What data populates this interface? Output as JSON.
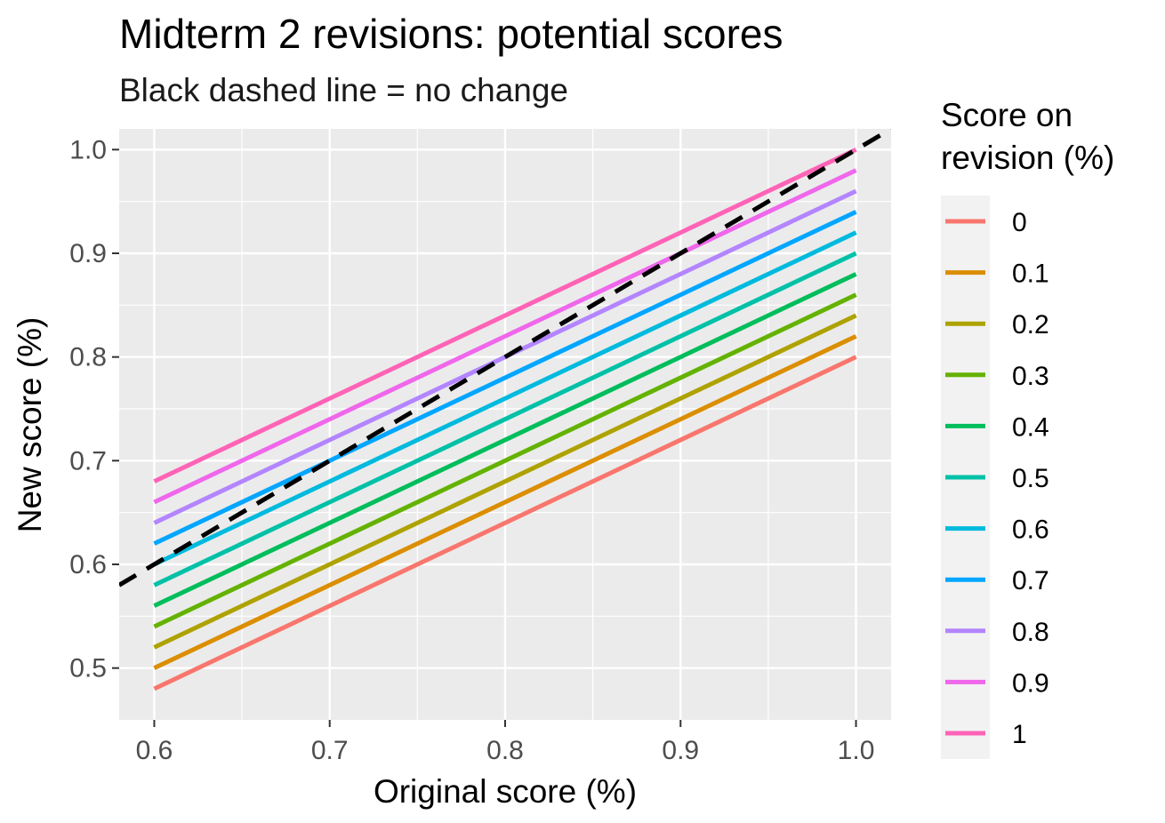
{
  "chart_data": {
    "type": "line",
    "title": "Midterm 2 revisions: potential scores",
    "subtitle": "Black dashed line = no change",
    "xlabel": "Original score (%)",
    "ylabel": "New score (%)",
    "xlim": [
      0.58,
      1.02
    ],
    "ylim": [
      0.45,
      1.02
    ],
    "x_ticks": [
      "0.6",
      "0.7",
      "0.8",
      "0.9",
      "1.0"
    ],
    "y_ticks": [
      "0.5",
      "0.6",
      "0.7",
      "0.8",
      "0.9",
      "1.0"
    ],
    "grid": true,
    "panel_background": "#ebebeb",
    "legend": {
      "title": "Score on revision (%)",
      "placement": "right"
    },
    "x": [
      0.6,
      1.0
    ],
    "series": [
      {
        "name": "0",
        "color": "#F8766D",
        "values": [
          0.48,
          0.8
        ]
      },
      {
        "name": "0.1",
        "color": "#DB8E00",
        "values": [
          0.5,
          0.82
        ]
      },
      {
        "name": "0.2",
        "color": "#AEA200",
        "values": [
          0.52,
          0.84
        ]
      },
      {
        "name": "0.3",
        "color": "#64B200",
        "values": [
          0.54,
          0.86
        ]
      },
      {
        "name": "0.4",
        "color": "#00BD5C",
        "values": [
          0.56,
          0.88
        ]
      },
      {
        "name": "0.5",
        "color": "#00C1A7",
        "values": [
          0.58,
          0.9
        ]
      },
      {
        "name": "0.6",
        "color": "#00BADE",
        "values": [
          0.6,
          0.92
        ]
      },
      {
        "name": "0.7",
        "color": "#00A6FF",
        "values": [
          0.62,
          0.94
        ]
      },
      {
        "name": "0.8",
        "color": "#B385FF",
        "values": [
          0.64,
          0.96
        ]
      },
      {
        "name": "0.9",
        "color": "#EF67EB",
        "values": [
          0.66,
          0.98
        ]
      },
      {
        "name": "1",
        "color": "#FF63B6",
        "values": [
          0.68,
          1.0
        ]
      }
    ],
    "reference_line": {
      "style": "dashed",
      "color": "#000000",
      "slope": 1,
      "intercept": 0
    }
  }
}
